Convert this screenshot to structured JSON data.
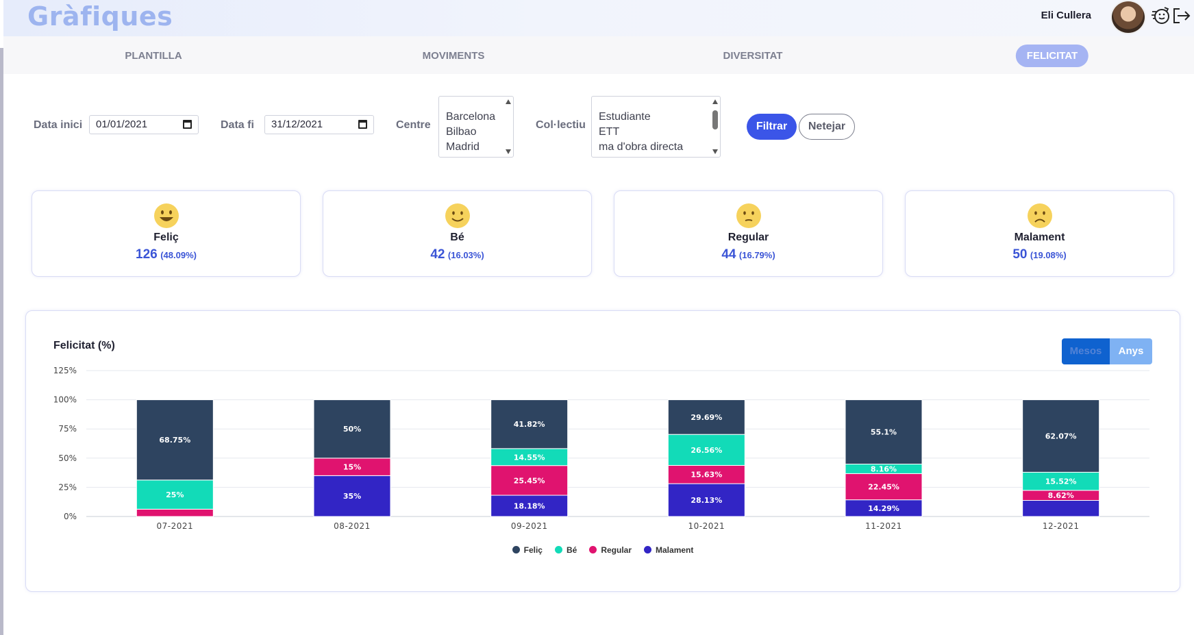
{
  "app": {
    "title": "Gràfiques",
    "user_name": "Eli Cullera"
  },
  "nav": {
    "tabs": [
      {
        "label": "PLANTILLA",
        "active": false
      },
      {
        "label": "MOVIMENTS",
        "active": false
      },
      {
        "label": "DIVERSITAT",
        "active": false
      },
      {
        "label": "FELICITAT",
        "active": true
      }
    ]
  },
  "filters": {
    "start_label": "Data inici",
    "start_value": "01/01/2021",
    "end_label": "Data fi",
    "end_value": "31/12/2021",
    "centre_label": "Centre",
    "centre_options": [
      "Barcelona",
      "Bilbao",
      "Madrid"
    ],
    "collectiu_label": "Col·lectiu",
    "collectiu_options": [
      "Estudiante",
      "ETT",
      "ma d'obra directa"
    ],
    "filter_button": "Filtrar",
    "clear_button": "Netejar"
  },
  "cards": [
    {
      "label": "Feliç",
      "count": "126",
      "pct": "(48.09%)",
      "icon": "very-happy-face-icon"
    },
    {
      "label": "Bé",
      "count": "42",
      "pct": "(16.03%)",
      "icon": "smile-face-icon"
    },
    {
      "label": "Regular",
      "count": "44",
      "pct": "(16.79%)",
      "icon": "neutral-face-icon"
    },
    {
      "label": "Malament",
      "count": "50",
      "pct": "(19.08%)",
      "icon": "sad-face-icon"
    }
  ],
  "chart_panel": {
    "title": "Felicitat (%)",
    "mesos_label": "Mesos",
    "anys_label": "Anys"
  },
  "chart_data": {
    "type": "bar",
    "stacked": true,
    "categories": [
      "07-2021",
      "08-2021",
      "09-2021",
      "10-2021",
      "11-2021",
      "12-2021"
    ],
    "ylim": [
      0,
      125
    ],
    "yticks": [
      "0%",
      "25%",
      "50%",
      "75%",
      "100%",
      "125%"
    ],
    "ytick_values": [
      0,
      25,
      50,
      75,
      100,
      125
    ],
    "legend_position": "bottom",
    "grid": true,
    "series": [
      {
        "name": "Malament",
        "color": "#3225c5",
        "values": [
          0,
          35,
          18.18,
          28.13,
          14.29,
          13.79
        ],
        "labels": [
          "",
          "35%",
          "18.18%",
          "28.13%",
          "14.29%",
          ""
        ]
      },
      {
        "name": "Regular",
        "color": "#e0136f",
        "values": [
          6.25,
          15,
          25.45,
          15.63,
          22.45,
          8.62
        ],
        "labels": [
          "",
          "15%",
          "25.45%",
          "15.63%",
          "22.45%",
          "8.62%"
        ]
      },
      {
        "name": "Bé",
        "color": "#12dbb8",
        "values": [
          25,
          0,
          14.55,
          26.56,
          8.16,
          15.52
        ],
        "labels": [
          "25%",
          "",
          "14.55%",
          "26.56%",
          "8.16%",
          "15.52%"
        ]
      },
      {
        "name": "Feliç",
        "color": "#2e4460",
        "values": [
          68.75,
          50,
          41.82,
          29.69,
          55.1,
          62.07
        ],
        "labels": [
          "68.75%",
          "50%",
          "41.82%",
          "29.69%",
          "55.1%",
          "62.07%"
        ]
      }
    ],
    "legend_order": [
      "Feliç",
      "Bé",
      "Regular",
      "Malament"
    ]
  }
}
